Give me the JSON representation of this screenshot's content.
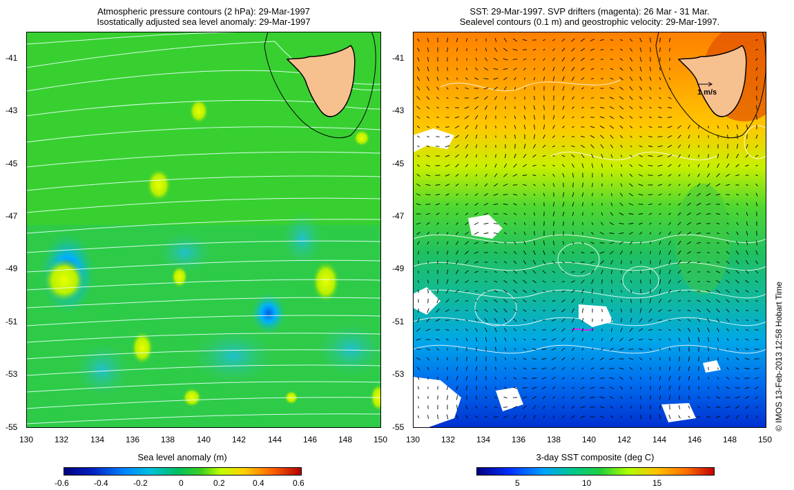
{
  "left_panel": {
    "title_line1": "Atmospheric pressure contours (2 hPa): 29-Mar-1997",
    "title_line2": "Isostatically adjusted sea level anomaly: 29-Mar-1997",
    "y_ticks": [
      "-41",
      "-43",
      "-45",
      "-47",
      "-49",
      "-51",
      "-53",
      "-55"
    ],
    "x_ticks": [
      "130",
      "132",
      "134",
      "136",
      "138",
      "140",
      "142",
      "144",
      "146",
      "148",
      "150"
    ],
    "colorbar_title": "Sea level anomaly (m)",
    "colorbar_ticks": [
      "-0.6",
      "-0.4",
      "-0.2",
      "0",
      "0.2",
      "0.4",
      "0.6"
    ]
  },
  "right_panel": {
    "title_line1": "SST: 29-Mar-1997. SVP drifters (magenta): 26 Mar - 31 Mar.",
    "title_line2": "Sealevel contours (0.1 m) and geostrophic velocity: 29-Mar-1997.",
    "y_ticks": [
      "-41",
      "-43",
      "-45",
      "-47",
      "-49",
      "-51",
      "-53",
      "-55"
    ],
    "x_ticks": [
      "130",
      "132",
      "134",
      "136",
      "138",
      "140",
      "142",
      "144",
      "146",
      "148",
      "150"
    ],
    "velocity_scale_label": "1 m/s",
    "colorbar_title": "3-day SST composite (deg C)",
    "colorbar_ticks": [
      "5",
      "10",
      "15"
    ]
  },
  "credit": "© IMOS 13-Feb-2013 12:58 Hobart Time",
  "map": {
    "lon_range": [
      130,
      150
    ],
    "lat_range": [
      -55,
      -40
    ],
    "land_color": "#f7c08f",
    "sla_colors": [
      "#00007f",
      "#0050ff",
      "#00b0ff",
      "#00c060",
      "#30d030",
      "#c0ff00",
      "#ffd000",
      "#ff6000",
      "#b00000"
    ],
    "sst_colors": [
      "#00007f",
      "#0030ff",
      "#00a0ff",
      "#00c890",
      "#20d040",
      "#b0ff00",
      "#ffc000",
      "#ff7000",
      "#c00000"
    ]
  }
}
